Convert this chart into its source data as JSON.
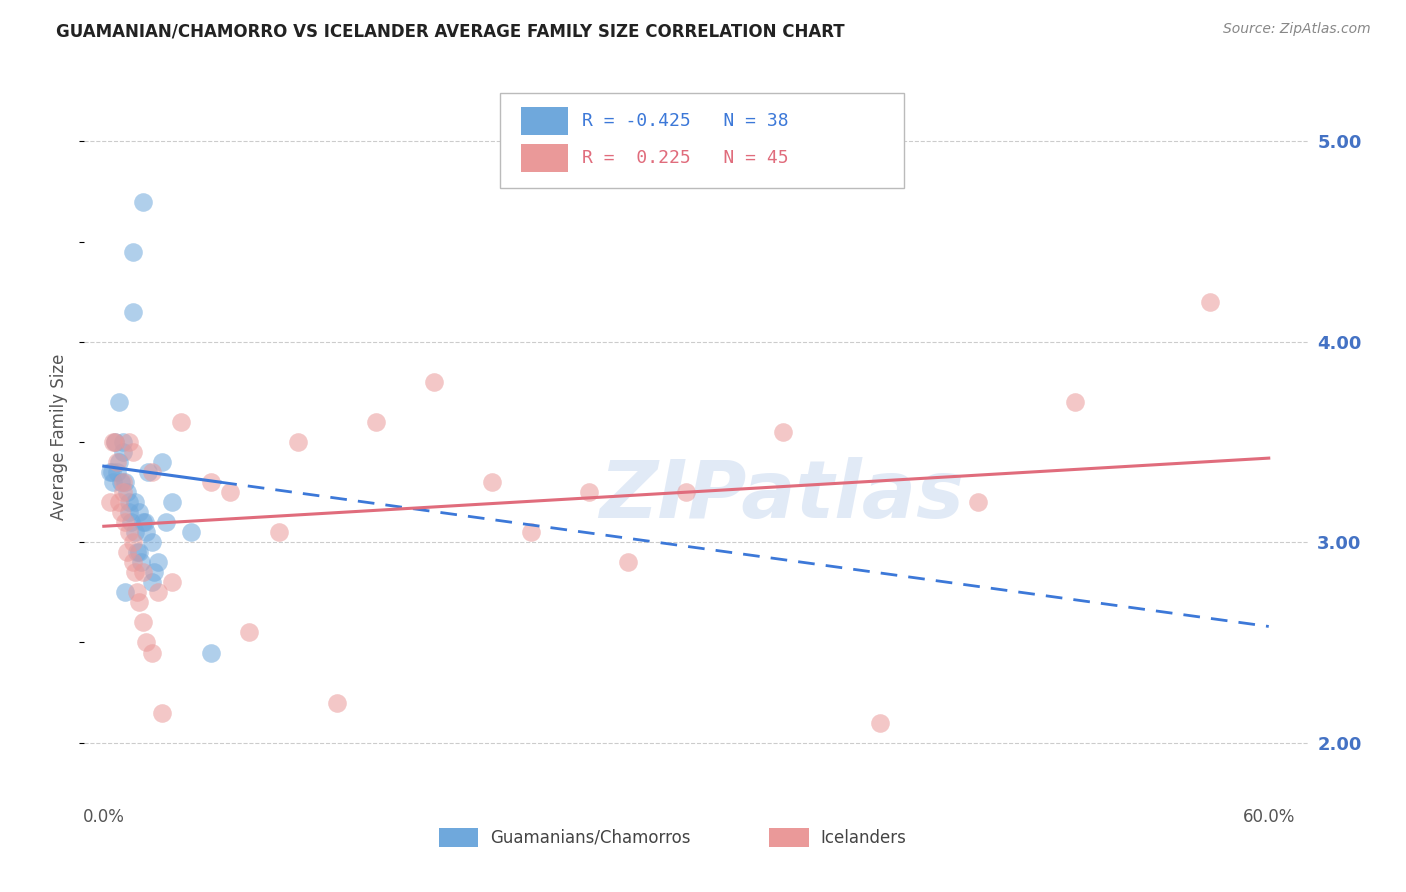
{
  "title": "GUAMANIAN/CHAMORRO VS ICELANDER AVERAGE FAMILY SIZE CORRELATION CHART",
  "source": "Source: ZipAtlas.com",
  "ylabel": "Average Family Size",
  "right_ytick_color": "#4472c4",
  "legend_blue_r": "-0.425",
  "legend_blue_n": "38",
  "legend_pink_r": " 0.225",
  "legend_pink_n": "45",
  "blue_color": "#6fa8dc",
  "pink_color": "#ea9999",
  "blue_line_color": "#3c78d8",
  "pink_line_color": "#e06c7c",
  "watermark": "ZIPatlas",
  "blue_x": [
    0.3,
    0.5,
    0.7,
    0.8,
    0.9,
    1.0,
    1.0,
    1.1,
    1.2,
    1.3,
    1.3,
    1.4,
    1.5,
    1.6,
    1.7,
    1.8,
    1.9,
    2.0,
    2.1,
    2.2,
    2.3,
    2.5,
    2.6,
    2.8,
    3.0,
    3.2,
    0.4,
    0.6,
    0.8,
    1.1,
    1.5,
    1.6,
    1.8,
    2.0,
    2.5,
    3.5,
    4.5,
    5.5
  ],
  "blue_y": [
    3.35,
    3.3,
    3.35,
    3.4,
    3.3,
    3.5,
    3.45,
    3.3,
    3.25,
    3.2,
    3.15,
    3.1,
    4.45,
    3.05,
    2.95,
    2.95,
    2.9,
    4.7,
    3.1,
    3.05,
    3.35,
    3.0,
    2.85,
    2.9,
    3.4,
    3.1,
    3.35,
    3.5,
    3.7,
    2.75,
    4.15,
    3.2,
    3.15,
    3.1,
    2.8,
    3.2,
    3.05,
    2.45
  ],
  "pink_x": [
    0.3,
    0.5,
    0.6,
    0.7,
    0.8,
    0.9,
    1.0,
    1.0,
    1.1,
    1.2,
    1.3,
    1.5,
    1.5,
    1.6,
    1.7,
    1.8,
    2.0,
    2.0,
    2.2,
    2.5,
    2.8,
    3.5,
    4.0,
    5.5,
    6.5,
    7.5,
    9.0,
    10.0,
    12.0,
    14.0,
    17.0,
    20.0,
    22.0,
    25.0,
    27.0,
    30.0,
    35.0,
    40.0,
    45.0,
    50.0,
    1.3,
    1.5,
    2.5,
    3.0,
    57.0
  ],
  "pink_y": [
    3.2,
    3.5,
    3.5,
    3.4,
    3.2,
    3.15,
    3.25,
    3.3,
    3.1,
    2.95,
    3.05,
    3.0,
    2.9,
    2.85,
    2.75,
    2.7,
    2.85,
    2.6,
    2.5,
    3.35,
    2.75,
    2.8,
    3.6,
    3.3,
    3.25,
    2.55,
    3.05,
    3.5,
    2.2,
    3.6,
    3.8,
    3.3,
    3.05,
    3.25,
    2.9,
    3.25,
    3.55,
    2.1,
    3.2,
    3.7,
    3.5,
    3.45,
    2.45,
    2.15,
    4.2
  ],
  "blue_line_x0": 0.0,
  "blue_line_x1": 60.0,
  "blue_line_y0": 3.38,
  "blue_line_y1": 2.58,
  "blue_solid_end": 6.0,
  "pink_line_x0": 0.0,
  "pink_line_x1": 60.0,
  "pink_line_y0": 3.08,
  "pink_line_y1": 3.42,
  "xlim_left": -1.0,
  "xlim_right": 62.0,
  "ylim_bottom": 1.7,
  "ylim_top": 5.35
}
